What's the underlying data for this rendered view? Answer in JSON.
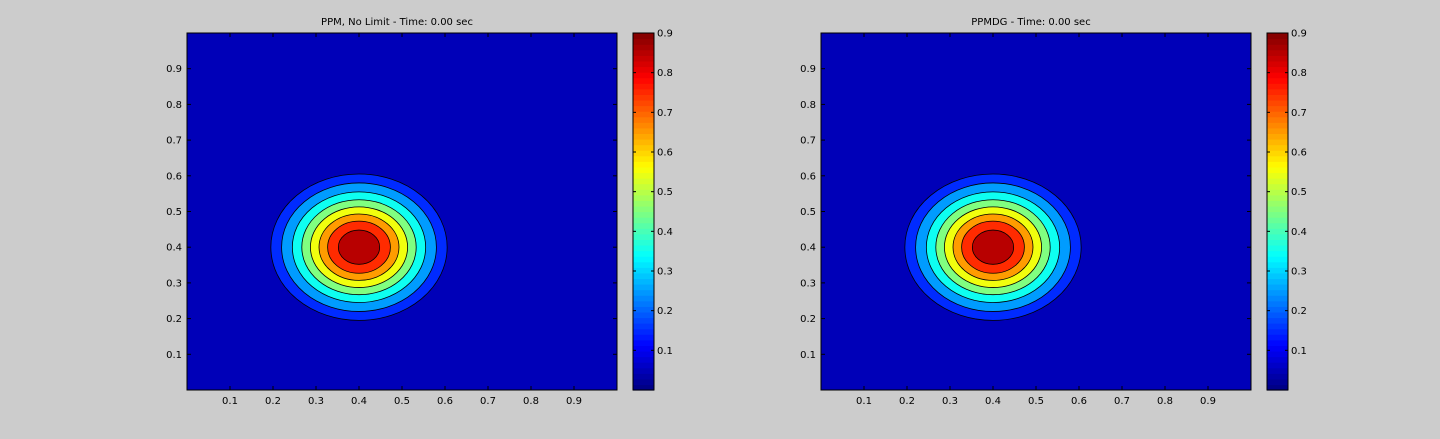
{
  "figure": {
    "background": "#cccccc",
    "axes_color": "#000000"
  },
  "chart_data": [
    {
      "type": "contour",
      "title": "PPM, No Limit - Time: 0.00 sec",
      "xlabel": "",
      "ylabel": "",
      "xlim": [
        0,
        1
      ],
      "ylim": [
        0,
        1
      ],
      "xticks": [
        0.1,
        0.2,
        0.3,
        0.4,
        0.5,
        0.6,
        0.7,
        0.8,
        0.9
      ],
      "xtick_labels": [
        "0.1",
        "0.2",
        "0.3",
        "0.4",
        "0.5",
        "0.6",
        "0.7",
        "0.8",
        "0.9"
      ],
      "yticks": [
        0.1,
        0.2,
        0.3,
        0.4,
        0.5,
        0.6,
        0.7,
        0.8,
        0.9
      ],
      "ytick_labels": [
        "0.1",
        "0.2",
        "0.3",
        "0.4",
        "0.5",
        "0.6",
        "0.7",
        "0.8",
        "0.9"
      ],
      "colormap": "jet",
      "clim": [
        0,
        0.9
      ],
      "colorbar_ticks": [
        0.1,
        0.2,
        0.3,
        0.4,
        0.5,
        0.6,
        0.7,
        0.8,
        0.9
      ],
      "colorbar_tick_labels": [
        "0.1",
        "0.2",
        "0.3",
        "0.4",
        "0.5",
        "0.6",
        "0.7",
        "0.8",
        "0.9"
      ],
      "contour_levels": [
        0.1,
        0.2,
        0.3,
        0.4,
        0.5,
        0.6,
        0.7,
        0.8
      ],
      "field": {
        "shape": "gaussian",
        "center": [
          0.4,
          0.4
        ],
        "amplitude": 0.9,
        "contour_radii_x": [
          0.205,
          0.18,
          0.155,
          0.133,
          0.113,
          0.093,
          0.073,
          0.048
        ],
        "contour_radii_y": [
          0.205,
          0.18,
          0.155,
          0.133,
          0.113,
          0.093,
          0.073,
          0.048
        ]
      }
    },
    {
      "type": "contour",
      "title": "PPMDG - Time: 0.00 sec",
      "xlabel": "",
      "ylabel": "",
      "xlim": [
        0,
        1
      ],
      "ylim": [
        0,
        1
      ],
      "xticks": [
        0.1,
        0.2,
        0.3,
        0.4,
        0.5,
        0.6,
        0.7,
        0.8,
        0.9
      ],
      "xtick_labels": [
        "0.1",
        "0.2",
        "0.3",
        "0.4",
        "0.5",
        "0.6",
        "0.7",
        "0.8",
        "0.9"
      ],
      "yticks": [
        0.1,
        0.2,
        0.3,
        0.4,
        0.5,
        0.6,
        0.7,
        0.8,
        0.9
      ],
      "ytick_labels": [
        "0.1",
        "0.2",
        "0.3",
        "0.4",
        "0.5",
        "0.6",
        "0.7",
        "0.8",
        "0.9"
      ],
      "colormap": "jet",
      "clim": [
        0,
        0.9
      ],
      "colorbar_ticks": [
        0.1,
        0.2,
        0.3,
        0.4,
        0.5,
        0.6,
        0.7,
        0.8,
        0.9
      ],
      "colorbar_tick_labels": [
        "0.1",
        "0.2",
        "0.3",
        "0.4",
        "0.5",
        "0.6",
        "0.7",
        "0.8",
        "0.9"
      ],
      "contour_levels": [
        0.1,
        0.2,
        0.3,
        0.4,
        0.5,
        0.6,
        0.7,
        0.8
      ],
      "field": {
        "shape": "gaussian",
        "center": [
          0.4,
          0.4
        ],
        "amplitude": 0.9,
        "contour_radii_x": [
          0.205,
          0.18,
          0.155,
          0.133,
          0.113,
          0.093,
          0.073,
          0.048
        ],
        "contour_radii_y": [
          0.205,
          0.18,
          0.155,
          0.133,
          0.113,
          0.093,
          0.073,
          0.048
        ]
      }
    }
  ]
}
